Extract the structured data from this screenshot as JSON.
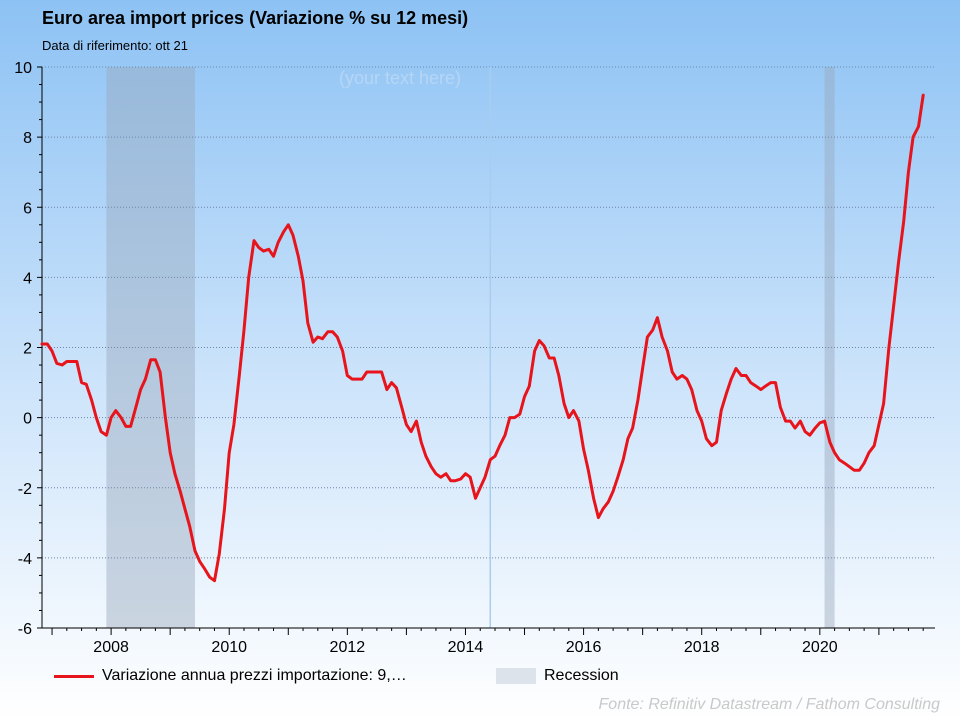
{
  "chart_data": {
    "type": "line",
    "title": "Euro area import prices (Variazione % su 12 mesi)",
    "subtitle": "Data di riferimento: ott 21",
    "watermark": "(your text here)",
    "source": "Fonte: Refinitiv Datastream / Fathom Consulting",
    "ylim": [
      -6,
      10
    ],
    "yticks": [
      -6,
      -4,
      -2,
      0,
      2,
      4,
      6,
      8,
      10
    ],
    "ytick_labels": [
      "-6",
      "-4",
      "-2",
      "0",
      "2",
      "4",
      "6",
      "8",
      "10"
    ],
    "xlim": [
      2006.83,
      2021.95
    ],
    "xticks": [
      2008,
      2010,
      2012,
      2014,
      2016,
      2018,
      2020
    ],
    "xtick_labels": [
      "2008",
      "2010",
      "2012",
      "2014",
      "2016",
      "2018",
      "2020"
    ],
    "grid": true,
    "legend_position": "bottom",
    "colors": {
      "series": "#e8141b",
      "recession": "#dde3ea"
    },
    "recessions": [
      [
        2007.92,
        2009.42
      ],
      [
        2020.08,
        2020.25
      ]
    ],
    "legend": [
      {
        "label": "Variazione annua prezzi importazione: 9,…",
        "kind": "line"
      },
      {
        "label": "Recession",
        "kind": "area"
      }
    ],
    "series": [
      {
        "name": "Variazione annua prezzi importazione: 9,…",
        "points": [
          [
            2006.83,
            2.1
          ],
          [
            2006.92,
            2.1
          ],
          [
            2007.0,
            1.9
          ],
          [
            2007.08,
            1.55
          ],
          [
            2007.17,
            1.5
          ],
          [
            2007.25,
            1.6
          ],
          [
            2007.33,
            1.6
          ],
          [
            2007.42,
            1.6
          ],
          [
            2007.5,
            1.0
          ],
          [
            2007.58,
            0.95
          ],
          [
            2007.67,
            0.5
          ],
          [
            2007.75,
            0.0
          ],
          [
            2007.83,
            -0.4
          ],
          [
            2007.92,
            -0.5
          ],
          [
            2008.0,
            0.0
          ],
          [
            2008.08,
            0.2
          ],
          [
            2008.17,
            0.0
          ],
          [
            2008.25,
            -0.25
          ],
          [
            2008.33,
            -0.25
          ],
          [
            2008.42,
            0.3
          ],
          [
            2008.5,
            0.8
          ],
          [
            2008.58,
            1.1
          ],
          [
            2008.67,
            1.65
          ],
          [
            2008.75,
            1.65
          ],
          [
            2008.83,
            1.3
          ],
          [
            2008.92,
            0.0
          ],
          [
            2009.0,
            -1.0
          ],
          [
            2009.08,
            -1.6
          ],
          [
            2009.17,
            -2.1
          ],
          [
            2009.25,
            -2.6
          ],
          [
            2009.33,
            -3.1
          ],
          [
            2009.42,
            -3.8
          ],
          [
            2009.5,
            -4.1
          ],
          [
            2009.58,
            -4.3
          ],
          [
            2009.67,
            -4.55
          ],
          [
            2009.75,
            -4.65
          ],
          [
            2009.83,
            -3.9
          ],
          [
            2009.92,
            -2.6
          ],
          [
            2010.0,
            -1.0
          ],
          [
            2010.08,
            -0.2
          ],
          [
            2010.17,
            1.2
          ],
          [
            2010.25,
            2.5
          ],
          [
            2010.33,
            4.0
          ],
          [
            2010.42,
            5.05
          ],
          [
            2010.5,
            4.85
          ],
          [
            2010.58,
            4.75
          ],
          [
            2010.67,
            4.8
          ],
          [
            2010.75,
            4.6
          ],
          [
            2010.83,
            5.0
          ],
          [
            2010.92,
            5.3
          ],
          [
            2011.0,
            5.5
          ],
          [
            2011.08,
            5.2
          ],
          [
            2011.17,
            4.6
          ],
          [
            2011.25,
            3.9
          ],
          [
            2011.33,
            2.7
          ],
          [
            2011.42,
            2.15
          ],
          [
            2011.5,
            2.3
          ],
          [
            2011.58,
            2.25
          ],
          [
            2011.67,
            2.45
          ],
          [
            2011.75,
            2.45
          ],
          [
            2011.83,
            2.3
          ],
          [
            2011.92,
            1.9
          ],
          [
            2012.0,
            1.2
          ],
          [
            2012.08,
            1.1
          ],
          [
            2012.17,
            1.1
          ],
          [
            2012.25,
            1.1
          ],
          [
            2012.33,
            1.3
          ],
          [
            2012.42,
            1.3
          ],
          [
            2012.5,
            1.3
          ],
          [
            2012.58,
            1.3
          ],
          [
            2012.67,
            0.8
          ],
          [
            2012.75,
            1.0
          ],
          [
            2012.83,
            0.85
          ],
          [
            2012.92,
            0.3
          ],
          [
            2013.0,
            -0.2
          ],
          [
            2013.08,
            -0.4
          ],
          [
            2013.17,
            -0.1
          ],
          [
            2013.25,
            -0.7
          ],
          [
            2013.33,
            -1.1
          ],
          [
            2013.42,
            -1.4
          ],
          [
            2013.5,
            -1.6
          ],
          [
            2013.58,
            -1.7
          ],
          [
            2013.67,
            -1.6
          ],
          [
            2013.75,
            -1.8
          ],
          [
            2013.83,
            -1.8
          ],
          [
            2013.92,
            -1.75
          ],
          [
            2014.0,
            -1.6
          ],
          [
            2014.08,
            -1.7
          ],
          [
            2014.17,
            -2.3
          ],
          [
            2014.25,
            -2.0
          ],
          [
            2014.33,
            -1.7
          ],
          [
            2014.42,
            -1.2
          ],
          [
            2014.5,
            -1.1
          ],
          [
            2014.58,
            -0.8
          ],
          [
            2014.67,
            -0.5
          ],
          [
            2014.75,
            0.0
          ],
          [
            2014.83,
            0.0
          ],
          [
            2014.92,
            0.1
          ],
          [
            2015.0,
            0.6
          ],
          [
            2015.08,
            0.9
          ],
          [
            2015.17,
            1.9
          ],
          [
            2015.25,
            2.2
          ],
          [
            2015.33,
            2.05
          ],
          [
            2015.42,
            1.7
          ],
          [
            2015.5,
            1.7
          ],
          [
            2015.58,
            1.2
          ],
          [
            2015.67,
            0.4
          ],
          [
            2015.75,
            0.0
          ],
          [
            2015.83,
            0.2
          ],
          [
            2015.92,
            -0.1
          ],
          [
            2016.0,
            -0.9
          ],
          [
            2016.08,
            -1.5
          ],
          [
            2016.17,
            -2.3
          ],
          [
            2016.25,
            -2.85
          ],
          [
            2016.33,
            -2.6
          ],
          [
            2016.42,
            -2.4
          ],
          [
            2016.5,
            -2.1
          ],
          [
            2016.58,
            -1.7
          ],
          [
            2016.67,
            -1.2
          ],
          [
            2016.75,
            -0.6
          ],
          [
            2016.83,
            -0.3
          ],
          [
            2016.92,
            0.5
          ],
          [
            2017.0,
            1.4
          ],
          [
            2017.08,
            2.3
          ],
          [
            2017.17,
            2.5
          ],
          [
            2017.25,
            2.85
          ],
          [
            2017.33,
            2.3
          ],
          [
            2017.42,
            1.9
          ],
          [
            2017.5,
            1.3
          ],
          [
            2017.58,
            1.1
          ],
          [
            2017.67,
            1.2
          ],
          [
            2017.75,
            1.1
          ],
          [
            2017.83,
            0.8
          ],
          [
            2017.92,
            0.2
          ],
          [
            2018.0,
            -0.1
          ],
          [
            2018.08,
            -0.6
          ],
          [
            2018.17,
            -0.8
          ],
          [
            2018.25,
            -0.7
          ],
          [
            2018.33,
            0.2
          ],
          [
            2018.42,
            0.7
          ],
          [
            2018.5,
            1.1
          ],
          [
            2018.58,
            1.4
          ],
          [
            2018.67,
            1.2
          ],
          [
            2018.75,
            1.2
          ],
          [
            2018.83,
            1.0
          ],
          [
            2018.92,
            0.9
          ],
          [
            2019.0,
            0.8
          ],
          [
            2019.08,
            0.9
          ],
          [
            2019.17,
            1.0
          ],
          [
            2019.25,
            1.0
          ],
          [
            2019.33,
            0.3
          ],
          [
            2019.42,
            -0.1
          ],
          [
            2019.5,
            -0.1
          ],
          [
            2019.58,
            -0.3
          ],
          [
            2019.67,
            -0.1
          ],
          [
            2019.75,
            -0.4
          ],
          [
            2019.83,
            -0.5
          ],
          [
            2019.92,
            -0.3
          ],
          [
            2020.0,
            -0.15
          ],
          [
            2020.08,
            -0.1
          ],
          [
            2020.17,
            -0.7
          ],
          [
            2020.25,
            -1.0
          ],
          [
            2020.33,
            -1.2
          ],
          [
            2020.42,
            -1.3
          ],
          [
            2020.5,
            -1.4
          ],
          [
            2020.58,
            -1.5
          ],
          [
            2020.67,
            -1.5
          ],
          [
            2020.75,
            -1.3
          ],
          [
            2020.83,
            -1.0
          ],
          [
            2020.92,
            -0.8
          ],
          [
            2021.0,
            -0.2
          ],
          [
            2021.08,
            0.4
          ],
          [
            2021.17,
            2.0
          ],
          [
            2021.25,
            3.2
          ],
          [
            2021.33,
            4.4
          ],
          [
            2021.42,
            5.6
          ],
          [
            2021.5,
            7.0
          ],
          [
            2021.58,
            8.0
          ],
          [
            2021.67,
            8.3
          ],
          [
            2021.75,
            9.2
          ]
        ]
      }
    ]
  }
}
